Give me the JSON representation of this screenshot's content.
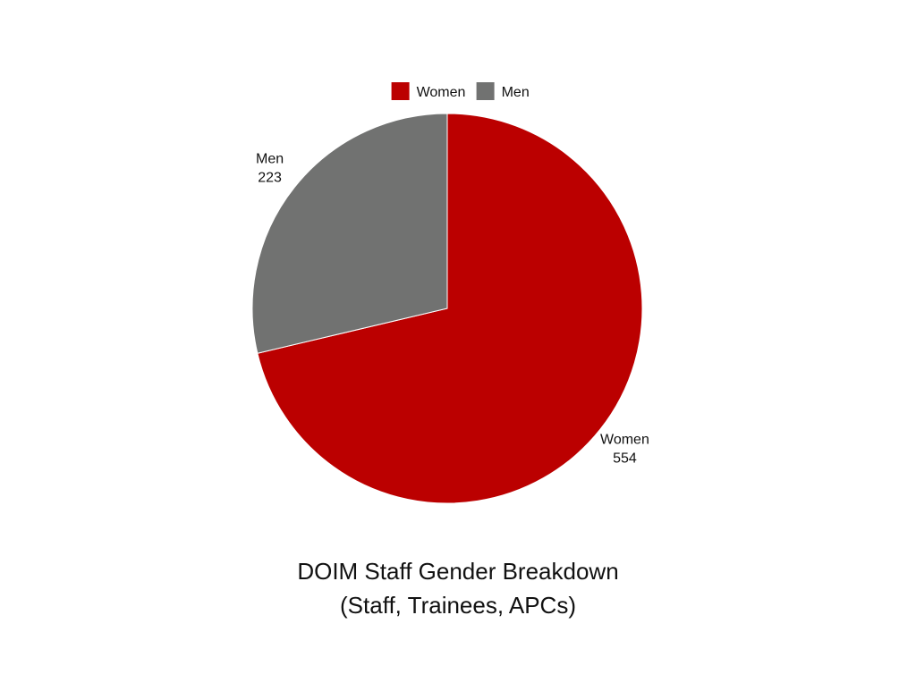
{
  "chart_data": {
    "type": "pie",
    "title": "DOIM Staff Gender Breakdown",
    "subtitle": "(Staff, Trainees, APCs)",
    "legend_position": "top",
    "series": [
      {
        "name": "Women",
        "value": 554,
        "color": "#BB0000"
      },
      {
        "name": "Men",
        "value": 223,
        "color": "#717271"
      }
    ],
    "data_labels": [
      "Women\n554",
      "Men\n223"
    ]
  }
}
